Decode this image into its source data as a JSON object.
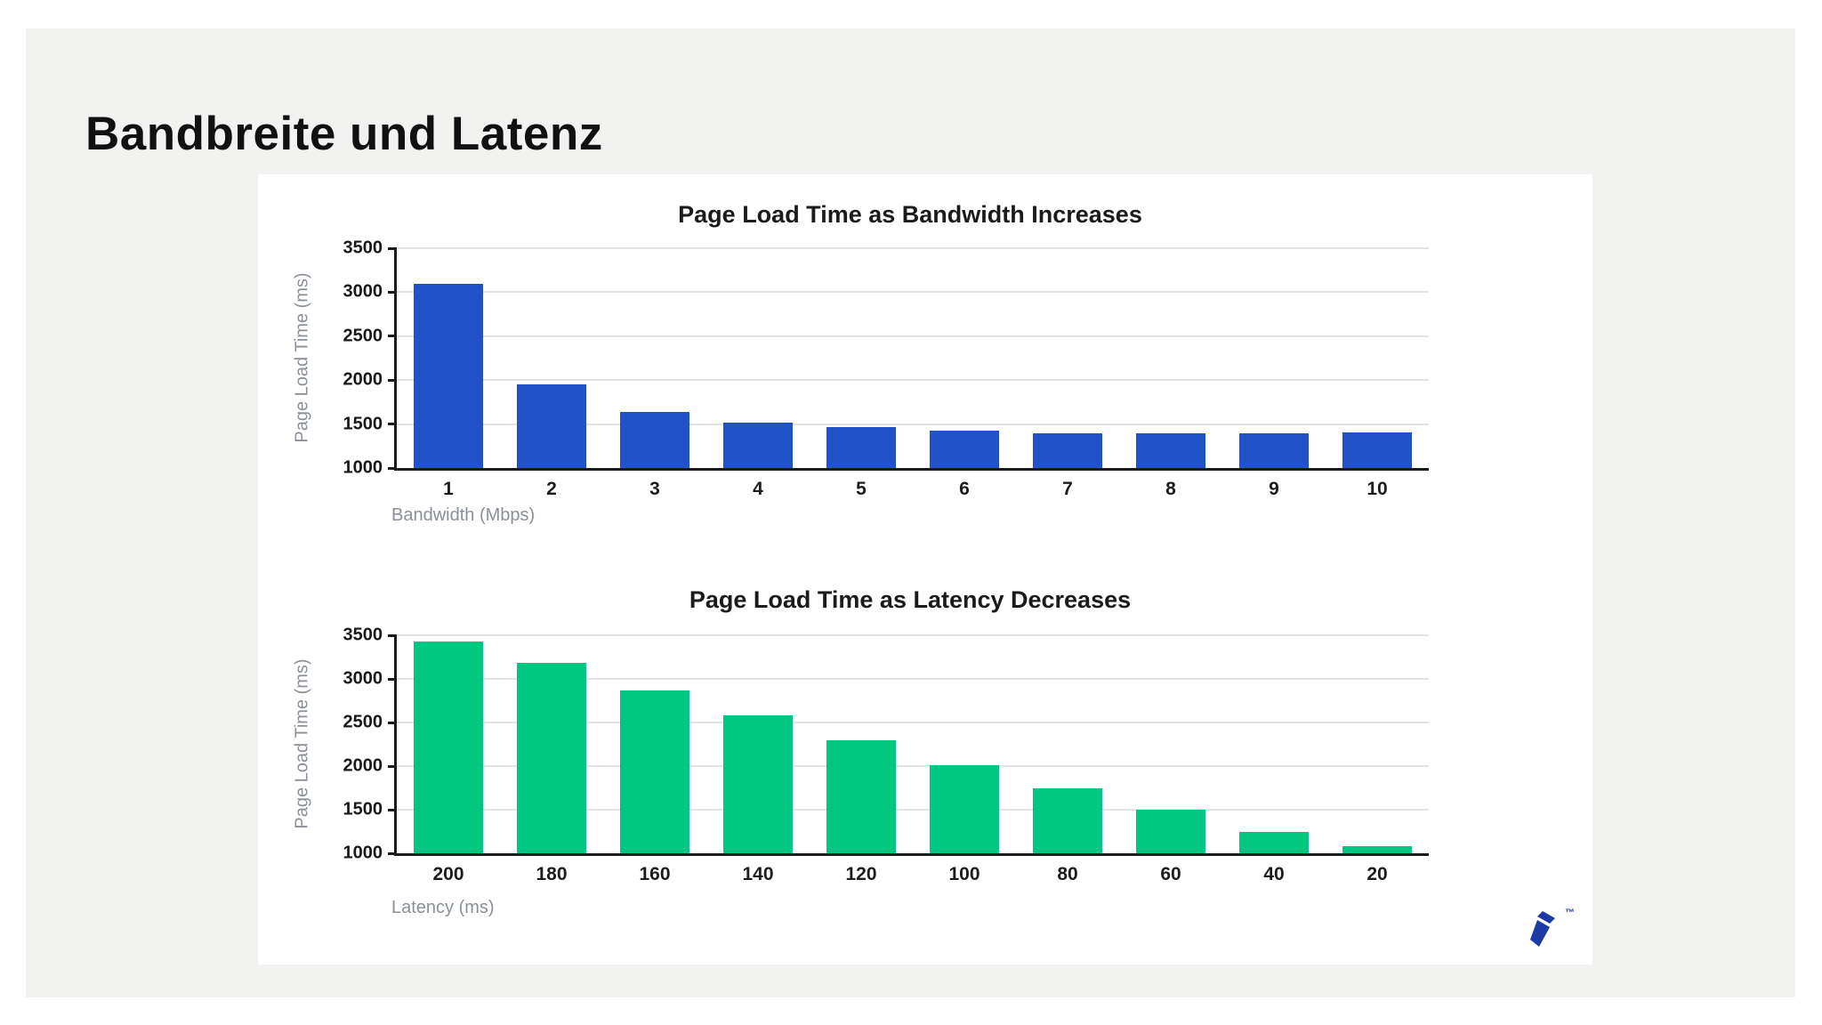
{
  "slide": {
    "title": "Bandbreite und Latenz",
    "trademark": "™"
  },
  "colors": {
    "panel_gray": "#f2f2f1",
    "card_white": "#ffffff",
    "bar_blue": "#2252c9",
    "bar_green": "#00c882",
    "axis_dark": "#1b1b1b",
    "grid_gray": "#e3e3e3",
    "muted_text": "#8a9098",
    "logo_navy": "#1d3aa5"
  },
  "chart_data": [
    {
      "type": "bar",
      "title": "Page Load Time as Bandwidth Increases",
      "xlabel": "Bandwidth (Mbps)",
      "ylabel": "Page Load Time (ms)",
      "categories": [
        "1",
        "2",
        "3",
        "4",
        "5",
        "6",
        "7",
        "8",
        "9",
        "10"
      ],
      "values": [
        3100,
        1950,
        1640,
        1520,
        1470,
        1430,
        1390,
        1390,
        1390,
        1400
      ],
      "ylim": [
        1000,
        3500
      ],
      "yticks": [
        1000,
        1500,
        2000,
        2500,
        3000,
        3500
      ],
      "bar_color": "#2252c9",
      "grid": true,
      "legend": false
    },
    {
      "type": "bar",
      "title": "Page Load Time as Latency Decreases",
      "xlabel": "Latency (ms)",
      "ylabel": "Page Load Time (ms)",
      "categories": [
        "200",
        "180",
        "160",
        "140",
        "120",
        "100",
        "80",
        "60",
        "40",
        "20"
      ],
      "values": [
        3430,
        3180,
        2870,
        2580,
        2300,
        2010,
        1740,
        1500,
        1240,
        1080
      ],
      "ylim": [
        1000,
        3500
      ],
      "yticks": [
        1000,
        1500,
        2000,
        2500,
        3000,
        3500
      ],
      "bar_color": "#00c882",
      "grid": true,
      "legend": false
    }
  ]
}
